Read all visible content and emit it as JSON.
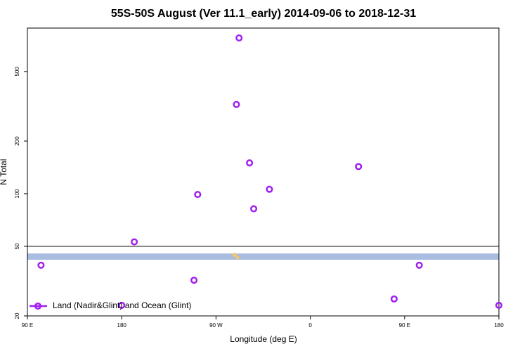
{
  "chart_data": {
    "type": "scatter",
    "title": "55S-50S August (Ver 11.1_early)   2014-09-06 to 2018-12-31",
    "x_label": "Longitude (deg E)",
    "y_label": "N Total",
    "log_y": true,
    "xlim": [
      90,
      540
    ],
    "xticks": [
      {
        "value": 90,
        "label": "90 E"
      },
      {
        "value": 180,
        "label": "180"
      },
      {
        "value": 270,
        "label": "90 W"
      },
      {
        "value": 360,
        "label": "0"
      },
      {
        "value": 450,
        "label": "90 E"
      },
      {
        "value": 540,
        "label": "180"
      }
    ],
    "ylim": [
      20,
      886
    ],
    "yticks": [
      20,
      50,
      100,
      200,
      500
    ],
    "reference_line": 50,
    "legend": "bottom-left",
    "series": [
      {
        "name": "Land (Nadir&Glint) and Ocean (Glint)",
        "color": "#a020f0",
        "x": [
          292,
          289.5,
          302,
          406,
          321,
          252.5,
          306,
          192,
          103,
          464,
          249,
          440,
          180,
          540
        ],
        "values": [
          778,
          324,
          150,
          143,
          106,
          99,
          82,
          53,
          39,
          39,
          32,
          25,
          23,
          23
        ]
      }
    ]
  }
}
